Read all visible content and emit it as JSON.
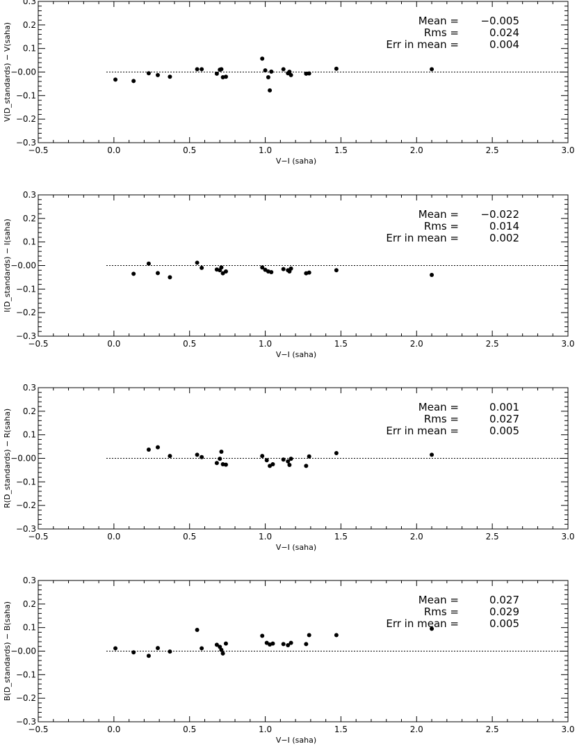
{
  "chart_data": [
    {
      "type": "scatter",
      "xlabel": "V-I (saha)",
      "ylabel": "V(D_standards) - V(saha)",
      "xlim": [
        -0.5,
        3.0
      ],
      "ylim": [
        -0.3,
        0.3
      ],
      "xticks": [
        "-0.5",
        "0.0",
        "0.5",
        "1.0",
        "1.5",
        "2.0",
        "2.5",
        "3.0"
      ],
      "yticks": [
        "0.3",
        "0.2",
        "0.1",
        "-0.00",
        "-0.1",
        "-0.2",
        "-0.3"
      ],
      "reference_line": 0.0,
      "stats": {
        "mean_label": "Mean =",
        "mean": "-0.005",
        "rms_label": "Rms =",
        "rms": "0.024",
        "err_label": "Err in mean =",
        "err": "0.004"
      },
      "x": [
        0.01,
        0.13,
        0.23,
        0.29,
        0.37,
        0.55,
        0.58,
        0.68,
        0.7,
        0.71,
        0.72,
        0.74,
        0.98,
        1.0,
        1.02,
        1.03,
        1.04,
        1.12,
        1.15,
        1.16,
        1.17,
        1.27,
        1.29,
        1.47,
        2.1
      ],
      "y": [
        -0.032,
        -0.038,
        -0.005,
        -0.013,
        -0.02,
        0.012,
        0.012,
        -0.007,
        0.01,
        0.012,
        -0.022,
        -0.02,
        0.057,
        0.007,
        -0.022,
        -0.078,
        0.002,
        0.012,
        -0.005,
        0.001,
        -0.013,
        -0.007,
        -0.006,
        0.014,
        0.012
      ]
    },
    {
      "type": "scatter",
      "xlabel": "V-I (saha)",
      "ylabel": "I(D_standards) - I(saha)",
      "xlim": [
        -0.5,
        3.0
      ],
      "ylim": [
        -0.3,
        0.3
      ],
      "xticks": [
        "-0.5",
        "0.0",
        "0.5",
        "1.0",
        "1.5",
        "2.0",
        "2.5",
        "3.0"
      ],
      "yticks": [
        "0.3",
        "0.2",
        "0.1",
        "-0.00",
        "-0.1",
        "-0.2",
        "-0.3"
      ],
      "reference_line": 0.0,
      "stats": {
        "mean_label": "Mean =",
        "mean": "-0.022",
        "rms_label": "Rms =",
        "rms": "0.014",
        "err_label": "Err in mean =",
        "err": "0.002"
      },
      "x": [
        0.13,
        0.23,
        0.29,
        0.37,
        0.55,
        0.58,
        0.68,
        0.7,
        0.71,
        0.72,
        0.74,
        0.98,
        1.0,
        1.02,
        1.04,
        1.12,
        1.15,
        1.16,
        1.17,
        1.27,
        1.29,
        1.47,
        2.1
      ],
      "y": [
        -0.035,
        0.008,
        -0.032,
        -0.05,
        0.012,
        -0.01,
        -0.017,
        -0.02,
        -0.008,
        -0.033,
        -0.025,
        -0.008,
        -0.018,
        -0.025,
        -0.028,
        -0.015,
        -0.02,
        -0.025,
        -0.013,
        -0.033,
        -0.03,
        -0.02,
        -0.04
      ]
    },
    {
      "type": "scatter",
      "xlabel": "V-I (saha)",
      "ylabel": "R(D_standards) - R(saha)",
      "xlim": [
        -0.5,
        3.0
      ],
      "ylim": [
        -0.3,
        0.3
      ],
      "xticks": [
        "-0.5",
        "0.0",
        "0.5",
        "1.0",
        "1.5",
        "2.0",
        "2.5",
        "3.0"
      ],
      "yticks": [
        "0.3",
        "0.2",
        "0.1",
        "-0.00",
        "-0.1",
        "-0.2",
        "-0.3"
      ],
      "reference_line": 0.0,
      "stats": {
        "mean_label": "Mean =",
        "mean": "0.001",
        "rms_label": "Rms =",
        "rms": "0.027",
        "err_label": "Err in mean =",
        "err": "0.005"
      },
      "x": [
        0.23,
        0.29,
        0.37,
        0.55,
        0.58,
        0.68,
        0.7,
        0.71,
        0.72,
        0.74,
        0.98,
        1.01,
        1.03,
        1.05,
        1.12,
        1.15,
        1.16,
        1.17,
        1.27,
        1.29,
        1.47,
        2.1
      ],
      "y": [
        0.037,
        0.047,
        0.01,
        0.015,
        0.005,
        -0.02,
        -0.002,
        0.028,
        -0.025,
        -0.027,
        0.01,
        -0.008,
        -0.032,
        -0.025,
        -0.005,
        -0.013,
        -0.028,
        -0.002,
        -0.032,
        0.008,
        0.022,
        0.015
      ]
    },
    {
      "type": "scatter",
      "xlabel": "V-I (saha)",
      "ylabel": "B(D_standards) - B(saha)",
      "xlim": [
        -0.5,
        3.0
      ],
      "ylim": [
        -0.3,
        0.3
      ],
      "xticks": [
        "-0.5",
        "0.0",
        "0.5",
        "1.0",
        "1.5",
        "2.0",
        "2.5",
        "3.0"
      ],
      "yticks": [
        "0.3",
        "0.2",
        "0.1",
        "-0.00",
        "-0.1",
        "-0.2",
        "-0.3"
      ],
      "reference_line": 0.0,
      "stats": {
        "mean_label": "Mean =",
        "mean": "0.027",
        "rms_label": "Rms =",
        "rms": "0.029",
        "err_label": "Err in mean =",
        "err": "0.005"
      },
      "x": [
        0.01,
        0.13,
        0.23,
        0.29,
        0.37,
        0.55,
        0.58,
        0.68,
        0.7,
        0.71,
        0.72,
        0.74,
        0.98,
        1.01,
        1.03,
        1.05,
        1.12,
        1.15,
        1.17,
        1.27,
        1.29,
        1.47,
        2.1
      ],
      "y": [
        0.012,
        -0.005,
        -0.02,
        0.013,
        -0.002,
        0.09,
        0.012,
        0.027,
        0.018,
        0.005,
        -0.01,
        0.032,
        0.065,
        0.035,
        0.028,
        0.032,
        0.03,
        0.025,
        0.035,
        0.03,
        0.068,
        0.068,
        0.095
      ]
    }
  ]
}
